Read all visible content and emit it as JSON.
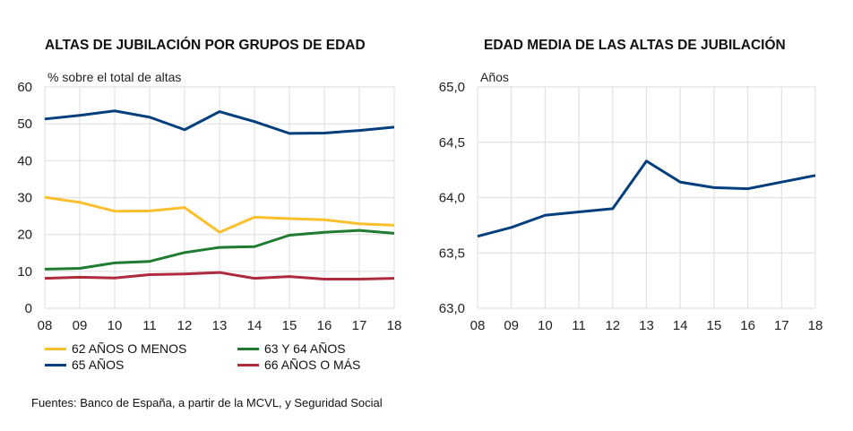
{
  "chart_data": [
    {
      "type": "line",
      "title": "ALTAS DE JUBILACIÓN POR GRUPOS DE EDAD",
      "ylabel": "% sobre el total de altas",
      "categories": [
        "08",
        "09",
        "10",
        "11",
        "12",
        "13",
        "14",
        "15",
        "16",
        "17",
        "18"
      ],
      "ylim": [
        0,
        60
      ],
      "yticks": [
        "0",
        "10",
        "20",
        "30",
        "40",
        "50",
        "60"
      ],
      "grid": true,
      "legend_placement": "bottom",
      "series": [
        {
          "name": "62 AÑOS O MENOS",
          "color": "#fbbf2e",
          "values": [
            30.1,
            28.7,
            26.3,
            26.4,
            27.3,
            20.6,
            24.7,
            24.3,
            24.0,
            22.9,
            22.5
          ]
        },
        {
          "name": "63 Y 64 AÑOS",
          "color": "#1f7a32",
          "values": [
            10.6,
            10.8,
            12.3,
            12.7,
            15.1,
            16.5,
            16.7,
            19.8,
            20.6,
            21.1,
            20.3
          ]
        },
        {
          "name": "65 AÑOS",
          "color": "#033f7d",
          "values": [
            51.3,
            52.3,
            53.5,
            51.8,
            48.4,
            53.3,
            50.6,
            47.4,
            47.5,
            48.2,
            49.1
          ]
        },
        {
          "name": "66 AÑOS O MÁS",
          "color": "#ae2a3c",
          "values": [
            8.1,
            8.4,
            8.2,
            9.1,
            9.3,
            9.7,
            8.1,
            8.6,
            7.9,
            7.9,
            8.1
          ]
        }
      ]
    },
    {
      "type": "line",
      "title": "EDAD MEDIA DE LAS ALTAS DE JUBILACIÓN",
      "ylabel": "Años",
      "categories": [
        "08",
        "09",
        "10",
        "11",
        "12",
        "13",
        "14",
        "15",
        "16",
        "17",
        "18"
      ],
      "ylim": [
        63,
        65
      ],
      "yticks": [
        "63,0",
        "63,5",
        "64,0",
        "64,5",
        "65,0"
      ],
      "grid": true,
      "series": [
        {
          "color": "#033f7d",
          "values": [
            63.65,
            63.73,
            63.84,
            63.87,
            63.9,
            64.33,
            64.14,
            64.09,
            64.08,
            64.14,
            64.2
          ]
        }
      ]
    }
  ],
  "source": "Fuentes: Banco de España, a partir de la MCVL, y Seguridad Social"
}
